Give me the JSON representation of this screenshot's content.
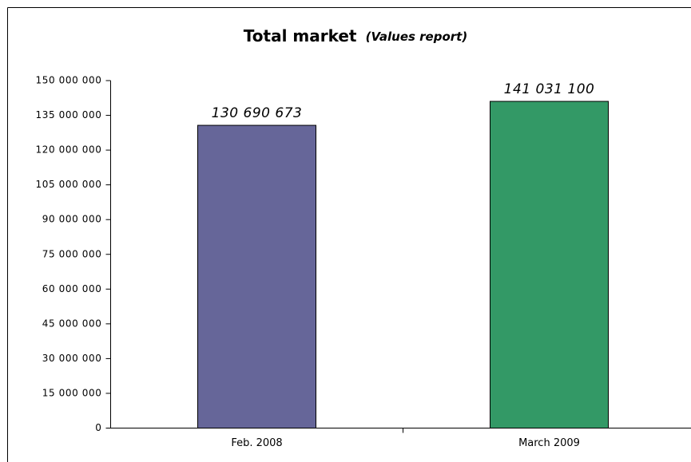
{
  "chart_data": {
    "type": "bar",
    "title": "Total market",
    "subtitle": "(Values report)",
    "categories": [
      "Feb. 2008",
      "March 2009"
    ],
    "values": [
      130690673,
      141031100
    ],
    "value_labels": [
      "130 690 673",
      "141 031 100"
    ],
    "colors": [
      "#666699",
      "#339966"
    ],
    "ylim": [
      0,
      150000000
    ],
    "yticks": [
      0,
      {
        "value": 15000000,
        "label": "15 000 000"
      },
      {
        "value": 30000000,
        "label": "30 000 000"
      },
      {
        "value": 45000000,
        "label": "45 000 000"
      },
      {
        "value": 60000000,
        "label": "60 000 000"
      },
      {
        "value": 75000000,
        "label": "75 000 000"
      },
      {
        "value": 90000000,
        "label": "90 000 000"
      },
      {
        "value": 105000000,
        "label": "105 000 000"
      },
      {
        "value": 120000000,
        "label": "120 000 000"
      },
      {
        "value": 135000000,
        "label": "135 000 000"
      },
      {
        "value": 150000000,
        "label": "150 000 000"
      }
    ],
    "grid": false
  }
}
